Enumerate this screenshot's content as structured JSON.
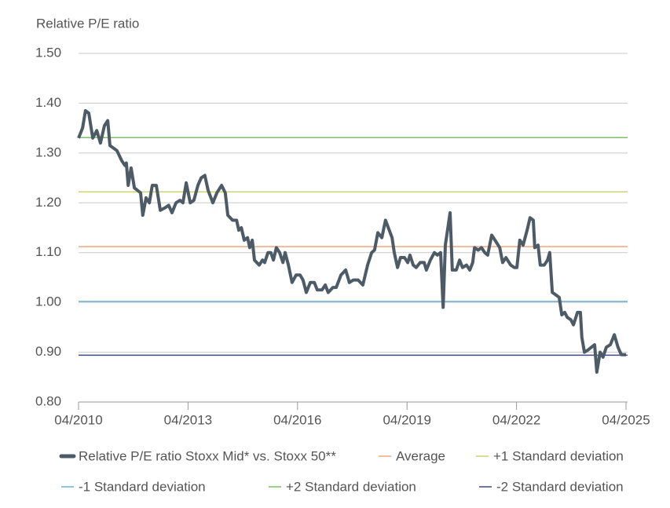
{
  "chart_data": {
    "type": "line",
    "y_label": "Relative P/E ratio",
    "xlim": [
      2010.25,
      2025.25
    ],
    "xticks": [
      {
        "value": 2010.25,
        "label": "04/2010"
      },
      {
        "value": 2013.25,
        "label": "04/2013"
      },
      {
        "value": 2016.25,
        "label": "04/2016"
      },
      {
        "value": 2019.25,
        "label": "04/2019"
      },
      {
        "value": 2022.25,
        "label": "04/2022"
      },
      {
        "value": 2025.25,
        "label": "04/2025"
      }
    ],
    "ylim": [
      0.8,
      1.5
    ],
    "yticks": [
      {
        "value": 0.8,
        "label": "0.80"
      },
      {
        "value": 0.9,
        "label": "0.90"
      },
      {
        "value": 1.0,
        "label": "1.00"
      },
      {
        "value": 1.1,
        "label": "1.10"
      },
      {
        "value": 1.2,
        "label": "1.20"
      },
      {
        "value": 1.3,
        "label": "1.30"
      },
      {
        "value": 1.4,
        "label": "1.40"
      },
      {
        "value": 1.5,
        "label": "1.50"
      }
    ],
    "grid": true,
    "series": [
      {
        "name": "Relative P/E ratio Stoxx Mid* vs. Stoxx 50**",
        "color": "#4d5b66",
        "x": [
          2010.25,
          2010.36,
          2010.44,
          2010.53,
          2010.64,
          2010.75,
          2010.85,
          2010.96,
          2011.05,
          2011.11,
          2011.3,
          2011.43,
          2011.52,
          2011.56,
          2011.61,
          2011.69,
          2011.78,
          2011.95,
          2012.01,
          2012.1,
          2012.19,
          2012.27,
          2012.38,
          2012.49,
          2012.62,
          2012.72,
          2012.81,
          2012.92,
          2013.03,
          2013.11,
          2013.2,
          2013.31,
          2013.41,
          2013.52,
          2013.61,
          2013.71,
          2013.8,
          2013.93,
          2014.04,
          2014.17,
          2014.27,
          2014.34,
          2014.47,
          2014.58,
          2014.64,
          2014.71,
          2014.79,
          2014.88,
          2014.94,
          2015.01,
          2015.07,
          2015.2,
          2015.29,
          2015.35,
          2015.44,
          2015.52,
          2015.59,
          2015.67,
          2015.76,
          2015.85,
          2015.91,
          2016.0,
          2016.1,
          2016.21,
          2016.32,
          2016.4,
          2016.49,
          2016.6,
          2016.71,
          2016.79,
          2016.92,
          2017.01,
          2017.09,
          2017.22,
          2017.31,
          2017.44,
          2017.57,
          2017.67,
          2017.78,
          2017.91,
          2018.04,
          2018.17,
          2018.28,
          2018.36,
          2018.45,
          2018.56,
          2018.66,
          2018.84,
          2018.9,
          2018.99,
          2019.07,
          2019.18,
          2019.27,
          2019.33,
          2019.42,
          2019.5,
          2019.61,
          2019.72,
          2019.78,
          2019.89,
          2020.0,
          2020.08,
          2020.17,
          2020.24,
          2020.3,
          2020.43,
          2020.49,
          2020.6,
          2020.69,
          2020.77,
          2020.88,
          2020.97,
          2021.05,
          2021.1,
          2021.2,
          2021.29,
          2021.38,
          2021.46,
          2021.57,
          2021.66,
          2021.79,
          2021.87,
          2021.96,
          2022.09,
          2022.19,
          2022.26,
          2022.34,
          2022.43,
          2022.54,
          2022.62,
          2022.71,
          2022.75,
          2022.84,
          2022.9,
          2023.01,
          2023.1,
          2023.16,
          2023.23,
          2023.33,
          2023.42,
          2023.49,
          2023.57,
          2023.64,
          2023.74,
          2023.81,
          2023.92,
          2024.0,
          2024.04,
          2024.11,
          2024.22,
          2024.3,
          2024.39,
          2024.45,
          2024.54,
          2024.62,
          2024.71,
          2024.82,
          2024.93,
          2025.03,
          2025.12,
          2025.25
        ],
        "values": [
          1.33,
          1.35,
          1.385,
          1.38,
          1.33,
          1.345,
          1.32,
          1.355,
          1.365,
          1.315,
          1.305,
          1.285,
          1.275,
          1.28,
          1.235,
          1.27,
          1.23,
          1.22,
          1.175,
          1.21,
          1.2,
          1.235,
          1.235,
          1.185,
          1.19,
          1.195,
          1.18,
          1.2,
          1.205,
          1.2,
          1.24,
          1.2,
          1.205,
          1.235,
          1.25,
          1.255,
          1.225,
          1.2,
          1.22,
          1.235,
          1.22,
          1.175,
          1.165,
          1.165,
          1.145,
          1.15,
          1.125,
          1.13,
          1.11,
          1.125,
          1.085,
          1.075,
          1.085,
          1.08,
          1.1,
          1.1,
          1.085,
          1.11,
          1.1,
          1.08,
          1.1,
          1.075,
          1.04,
          1.055,
          1.055,
          1.045,
          1.02,
          1.04,
          1.04,
          1.025,
          1.025,
          1.035,
          1.02,
          1.03,
          1.03,
          1.055,
          1.065,
          1.04,
          1.045,
          1.045,
          1.035,
          1.075,
          1.1,
          1.105,
          1.14,
          1.13,
          1.165,
          1.13,
          1.1,
          1.07,
          1.09,
          1.09,
          1.08,
          1.095,
          1.075,
          1.07,
          1.08,
          1.08,
          1.065,
          1.085,
          1.1,
          1.095,
          1.1,
          0.99,
          1.115,
          1.18,
          1.065,
          1.065,
          1.085,
          1.07,
          1.075,
          1.065,
          1.08,
          1.11,
          1.105,
          1.11,
          1.1,
          1.095,
          1.135,
          1.125,
          1.11,
          1.08,
          1.09,
          1.075,
          1.07,
          1.07,
          1.125,
          1.115,
          1.145,
          1.17,
          1.165,
          1.11,
          1.115,
          1.075,
          1.075,
          1.085,
          1.1,
          1.02,
          1.015,
          1.01,
          0.975,
          0.98,
          0.97,
          0.965,
          0.955,
          0.98,
          0.98,
          0.93,
          0.9,
          0.905,
          0.91,
          0.915,
          0.86,
          0.9,
          0.89,
          0.91,
          0.915,
          0.935,
          0.91,
          0.895,
          0.895
        ]
      }
    ],
    "reference_lines": [
      {
        "name": "Average",
        "color": "#f2a47e",
        "value": 1.112
      },
      {
        "name": "+1 Standard deviation",
        "color": "#c9d46c",
        "value": 1.222
      },
      {
        "name": "-1 Standard deviation",
        "color": "#6db3d4",
        "value": 1.002
      },
      {
        "name": "+2 Standard deviation",
        "color": "#7fbf6b",
        "value": 1.331
      },
      {
        "name": "-2 Standard deviation",
        "color": "#3d4b8a",
        "value": 0.894
      }
    ]
  }
}
